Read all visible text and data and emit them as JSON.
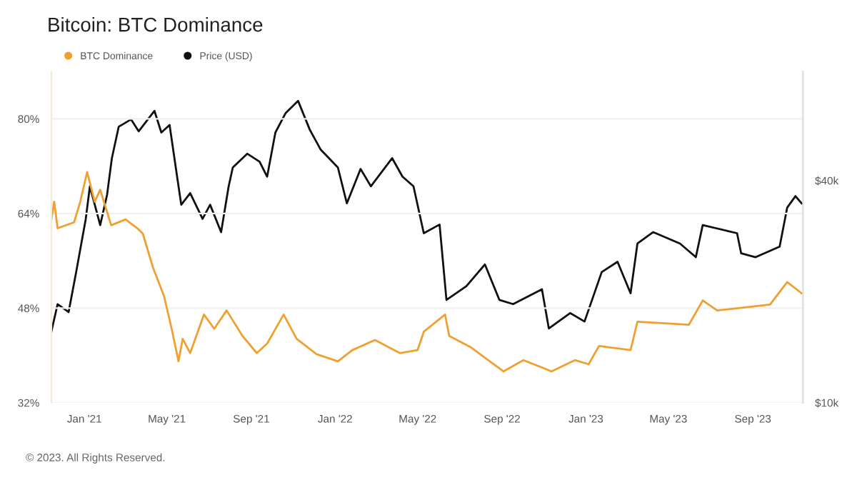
{
  "chart_data": {
    "type": "line",
    "title": "Bitcoin: BTC Dominance",
    "annotations": [
      "© 2023. All Rights Reserved."
    ],
    "xlim": [
      "2020-11-14",
      "2023-11-13"
    ],
    "xticks": [
      {
        "value": "2021-01-01",
        "label": "Jan '21"
      },
      {
        "value": "2021-05-01",
        "label": "May '21"
      },
      {
        "value": "2021-09-01",
        "label": "Sep '21"
      },
      {
        "value": "2022-01-01",
        "label": "Jan '22"
      },
      {
        "value": "2022-05-01",
        "label": "May '22"
      },
      {
        "value": "2022-09-01",
        "label": "Sep '22"
      },
      {
        "value": "2023-01-01",
        "label": "Jan '23"
      },
      {
        "value": "2023-05-01",
        "label": "May '23"
      },
      {
        "value": "2023-09-01",
        "label": "Sep '23"
      }
    ],
    "ylim": [
      32,
      88
    ],
    "yticks": [
      {
        "value": 32,
        "label": "32%"
      },
      {
        "value": 48,
        "label": "48%"
      },
      {
        "value": 64,
        "label": "64%"
      },
      {
        "value": 80,
        "label": "80%"
      }
    ],
    "log": "y2",
    "y2lim": [
      10000,
      79000
    ],
    "y2ticks": [
      {
        "value": 10000,
        "label": "$10k"
      },
      {
        "value": 40000,
        "label": "$40k"
      }
    ],
    "grid": "y",
    "legend": "top left",
    "line_style": "solid",
    "series": [
      {
        "name": "BTC Dominance",
        "color": "#f0a030",
        "x": [
          "2020-11-14",
          "2020-11-18",
          "2020-11-23",
          "2020-12-17",
          "2020-12-26",
          "2021-01-05",
          "2021-01-16",
          "2021-01-24",
          "2021-02-09",
          "2021-03-02",
          "2021-03-19",
          "2021-03-27",
          "2021-04-11",
          "2021-04-27",
          "2021-05-08",
          "2021-05-18",
          "2021-05-24",
          "2021-06-04",
          "2021-06-24",
          "2021-07-09",
          "2021-07-27",
          "2021-08-19",
          "2021-09-09",
          "2021-09-24",
          "2021-10-18",
          "2021-11-06",
          "2021-12-05",
          "2022-01-05",
          "2022-01-26",
          "2022-02-28",
          "2022-04-05",
          "2022-05-01",
          "2022-05-10",
          "2022-06-10",
          "2022-06-16",
          "2022-07-17",
          "2022-09-03",
          "2022-10-02",
          "2022-11-12",
          "2022-12-16",
          "2023-01-05",
          "2023-01-20",
          "2023-03-07",
          "2023-03-17",
          "2023-05-31",
          "2023-06-20",
          "2023-07-11",
          "2023-09-26",
          "2023-10-21",
          "2023-11-11"
        ],
        "values": [
          63,
          66,
          61.5,
          62.5,
          66,
          71,
          66,
          68,
          62,
          63,
          61.5,
          60.6,
          54.8,
          50,
          44.5,
          39,
          42.8,
          40.4,
          46.9,
          44.5,
          47.6,
          43.3,
          40.4,
          42,
          46.9,
          42.8,
          40.2,
          39,
          40.9,
          42.6,
          40.4,
          40.9,
          44,
          46.9,
          43.3,
          41.4,
          37.3,
          39.2,
          37.3,
          39.2,
          38.5,
          41.6,
          40.9,
          45.7,
          45.2,
          49.3,
          47.6,
          48.6,
          52.4,
          50.5
        ]
      },
      {
        "name": "Price (USD)",
        "color": "#111111",
        "axis": "y2",
        "x": [
          "2020-11-14",
          "2020-11-23",
          "2020-12-09",
          "2020-12-20",
          "2021-01-03",
          "2021-01-09",
          "2021-01-24",
          "2021-02-03",
          "2021-02-10",
          "2021-02-20",
          "2021-03-10",
          "2021-03-21",
          "2021-04-13",
          "2021-04-23",
          "2021-05-05",
          "2021-05-18",
          "2021-05-22",
          "2021-06-04",
          "2021-06-22",
          "2021-07-03",
          "2021-07-19",
          "2021-07-30",
          "2021-08-05",
          "2021-08-26",
          "2021-09-13",
          "2021-09-24",
          "2021-10-06",
          "2021-10-21",
          "2021-11-08",
          "2021-11-25",
          "2021-12-11",
          "2022-01-05",
          "2022-01-18",
          "2022-02-07",
          "2022-02-22",
          "2022-03-25",
          "2022-04-09",
          "2022-04-25",
          "2022-05-10",
          "2022-06-02",
          "2022-06-12",
          "2022-07-11",
          "2022-08-07",
          "2022-08-28",
          "2022-09-17",
          "2022-10-29",
          "2022-11-08",
          "2022-12-09",
          "2022-12-30",
          "2023-01-24",
          "2023-02-16",
          "2023-03-07",
          "2023-03-17",
          "2023-04-09",
          "2023-05-18",
          "2023-06-10",
          "2023-06-20",
          "2023-08-09",
          "2023-08-15",
          "2023-09-05",
          "2023-10-10",
          "2023-10-21",
          "2023-11-02",
          "2023-11-11"
        ],
        "values": [
          15600,
          18500,
          17600,
          22600,
          31500,
          38600,
          30300,
          36600,
          46000,
          56000,
          58600,
          54400,
          61800,
          54000,
          56600,
          38600,
          34400,
          37000,
          31500,
          34400,
          29000,
          38600,
          43400,
          47300,
          45000,
          41000,
          54000,
          61000,
          65800,
          55000,
          48500,
          43400,
          34700,
          43000,
          38600,
          46000,
          41000,
          38600,
          28800,
          30400,
          19000,
          20700,
          23700,
          19000,
          18500,
          20300,
          15900,
          17500,
          16600,
          22600,
          24100,
          19800,
          27000,
          29000,
          27000,
          24800,
          30300,
          28800,
          25400,
          24800,
          26500,
          33800,
          36300,
          34700
        ]
      }
    ]
  }
}
